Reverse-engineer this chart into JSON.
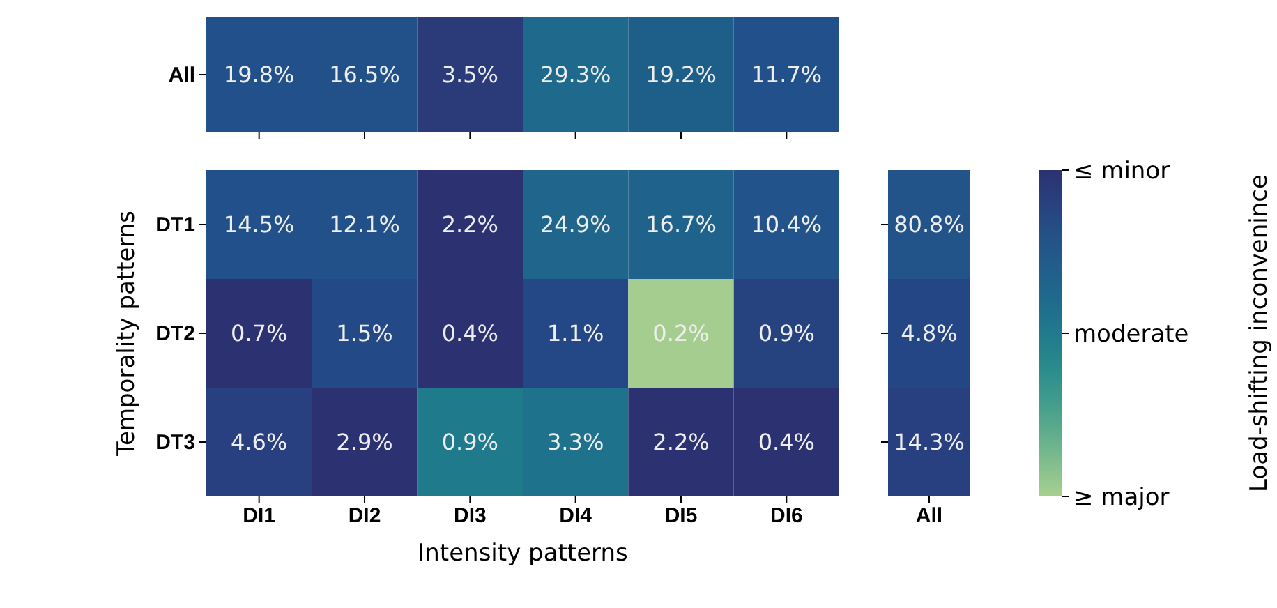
{
  "chart_data": [
    {
      "type": "heatmap",
      "categories": [
        null,
        null,
        null,
        null,
        null,
        null
      ],
      "y_categories": [
        "All"
      ],
      "cells": [
        [
          19.8,
          16.5,
          3.5,
          29.3,
          19.2,
          11.7
        ]
      ],
      "cell_labels": [
        [
          "19.8%",
          "16.5%",
          "3.5%",
          "29.3%",
          "19.2%",
          "11.7%"
        ]
      ],
      "colors": [
        [
          "#21508a",
          "#22518a",
          "#2b3a78",
          "#1f6a8c",
          "#1e5f8a",
          "#21508a"
        ]
      ]
    },
    {
      "type": "heatmap",
      "categories": [
        "DI1",
        "DI2",
        "DI3",
        "DI4",
        "DI5",
        "DI6"
      ],
      "y_categories": [
        "DT1",
        "DT2",
        "DT3"
      ],
      "xlabel": "Intensity patterns",
      "ylabel": "Temporality patterns",
      "cells": [
        [
          14.5,
          12.1,
          2.2,
          24.9,
          16.7,
          10.4
        ],
        [
          0.7,
          1.5,
          0.4,
          1.1,
          0.2,
          0.9
        ],
        [
          4.6,
          2.9,
          0.9,
          3.3,
          2.2,
          0.4
        ]
      ],
      "cell_labels": [
        [
          "14.5%",
          "12.1%",
          "2.2%",
          "24.9%",
          "16.7%",
          "10.4%"
        ],
        [
          "0.7%",
          "1.5%",
          "0.4%",
          "1.1%",
          "0.2%",
          "0.9%"
        ],
        [
          "4.6%",
          "2.9%",
          "0.9%",
          "3.3%",
          "2.2%",
          "0.4%"
        ]
      ],
      "colors": [
        [
          "#21508a",
          "#22518a",
          "#2c3172",
          "#1f658c",
          "#1f628b",
          "#22538a"
        ],
        [
          "#2c3172",
          "#234a86",
          "#2c3172",
          "#244886",
          "#a5cd90",
          "#27437f"
        ],
        [
          "#283f80",
          "#2c3172",
          "#1f7a8c",
          "#1f728c",
          "#2c3172",
          "#2c3172"
        ]
      ]
    },
    {
      "type": "heatmap",
      "categories": [
        "All"
      ],
      "y_categories": [
        null,
        null,
        null
      ],
      "cells": [
        [
          80.8
        ],
        [
          4.8
        ],
        [
          14.3
        ]
      ],
      "cell_labels": [
        [
          "80.8%"
        ],
        [
          "4.8%"
        ],
        [
          "14.3%"
        ]
      ],
      "colors": [
        [
          "#22548a"
        ],
        [
          "#254685"
        ],
        [
          "#283f80"
        ]
      ]
    },
    {
      "type": "other",
      "clabel": "Load-shifting inconvenince",
      "annotations": [
        "≤ minor",
        "moderate",
        "≥ major"
      ]
    }
  ]
}
